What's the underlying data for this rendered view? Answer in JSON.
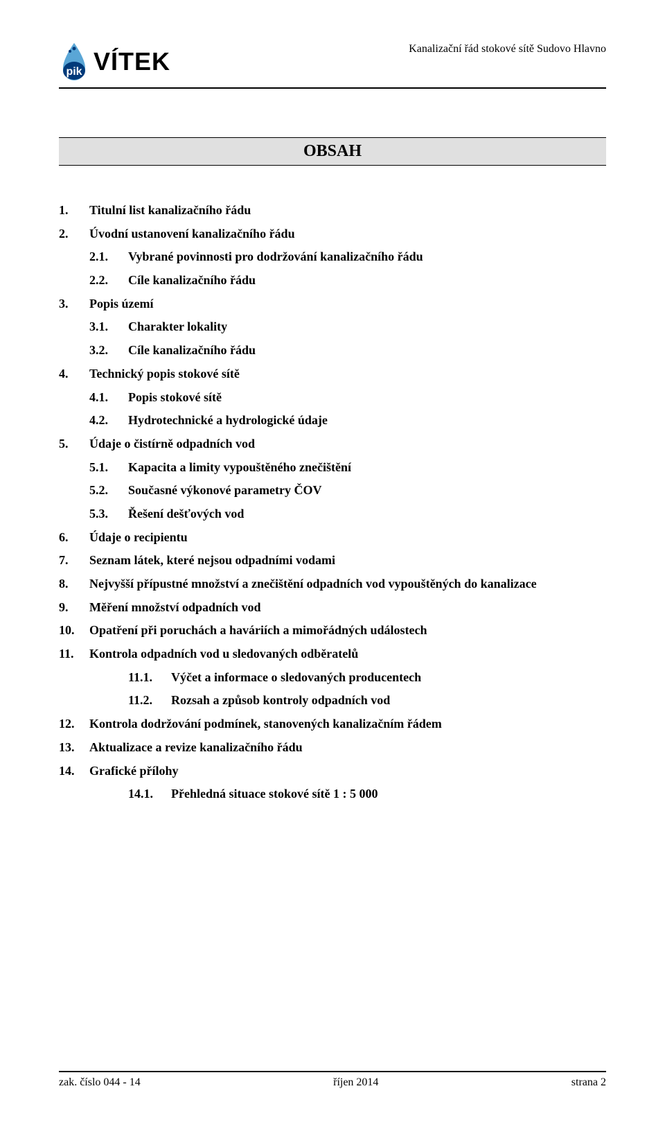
{
  "header": {
    "logo_text": "VÍTEK",
    "right_text": "Kanalizační řád stokové sítě Sudovo Hlavno",
    "logo_colors": {
      "drop": "#5aa6d6",
      "pill": "#003a7a",
      "letters": "#ffffff"
    }
  },
  "obsah_title": "OBSAH",
  "toc": [
    {
      "level": 1,
      "num": "1.",
      "label": "Titulní list kanalizačního řádu"
    },
    {
      "level": 1,
      "num": "2.",
      "label": "Úvodní ustanovení kanalizačního řádu"
    },
    {
      "level": 2,
      "num": "2.1.",
      "label": "Vybrané povinnosti pro dodržování kanalizačního řádu"
    },
    {
      "level": 2,
      "num": "2.2.",
      "label": "Cíle kanalizačního řádu"
    },
    {
      "level": 1,
      "num": "3.",
      "label": "Popis území"
    },
    {
      "level": 2,
      "num": "3.1.",
      "label": "Charakter lokality"
    },
    {
      "level": 2,
      "num": "3.2.",
      "label": "Cíle kanalizačního řádu"
    },
    {
      "level": 1,
      "num": "4.",
      "label": "Technický popis stokové sítě"
    },
    {
      "level": 2,
      "num": "4.1.",
      "label": "Popis stokové sítě"
    },
    {
      "level": 2,
      "num": "4.2.",
      "label": "Hydrotechnické a hydrologické údaje"
    },
    {
      "level": 1,
      "num": "5.",
      "label": "Údaje o čistírně odpadních vod"
    },
    {
      "level": 2,
      "num": "5.1.",
      "label": "Kapacita a limity vypouštěného znečištění"
    },
    {
      "level": 2,
      "num": "5.2.",
      "label": "Současné výkonové parametry ČOV"
    },
    {
      "level": 2,
      "num": "5.3.",
      "label": "Řešení dešťových vod"
    },
    {
      "level": 1,
      "num": "6.",
      "label": "Údaje o recipientu"
    },
    {
      "level": 1,
      "num": "7.",
      "label": "Seznam látek, které nejsou odpadními vodami"
    },
    {
      "level": 1,
      "num": "8.",
      "label": "Nejvyšší přípustné množství a znečištění odpadních vod vypouštěných do kanalizace"
    },
    {
      "level": 1,
      "num": "9.",
      "label": "Měření množství odpadních vod"
    },
    {
      "level": 1,
      "num": "10.",
      "label": "Opatření při poruchách a haváriích a mimořádných událostech"
    },
    {
      "level": 1,
      "num": "11.",
      "label": "Kontrola odpadních vod u sledovaných odběratelů"
    },
    {
      "level": 3,
      "num": "11.1.",
      "label": "Výčet a informace o sledovaných producentech"
    },
    {
      "level": 3,
      "num": "11.2.",
      "label": "Rozsah a způsob kontroly odpadních vod"
    },
    {
      "level": 1,
      "num": "12.",
      "label": "Kontrola dodržování podmínek, stanovených kanalizačním řádem"
    },
    {
      "level": 1,
      "num": "13.",
      "label": "Aktualizace a revize kanalizačního řádu"
    },
    {
      "level": 1,
      "num": "14.",
      "label": "Grafické přílohy"
    },
    {
      "level": 3,
      "num": "14.1.",
      "label": "Přehledná situace stokové sítě 1 : 5 000"
    }
  ],
  "footer": {
    "left": "zak. číslo 044 - 14",
    "center": "říjen 2014",
    "right": "strana 2"
  }
}
